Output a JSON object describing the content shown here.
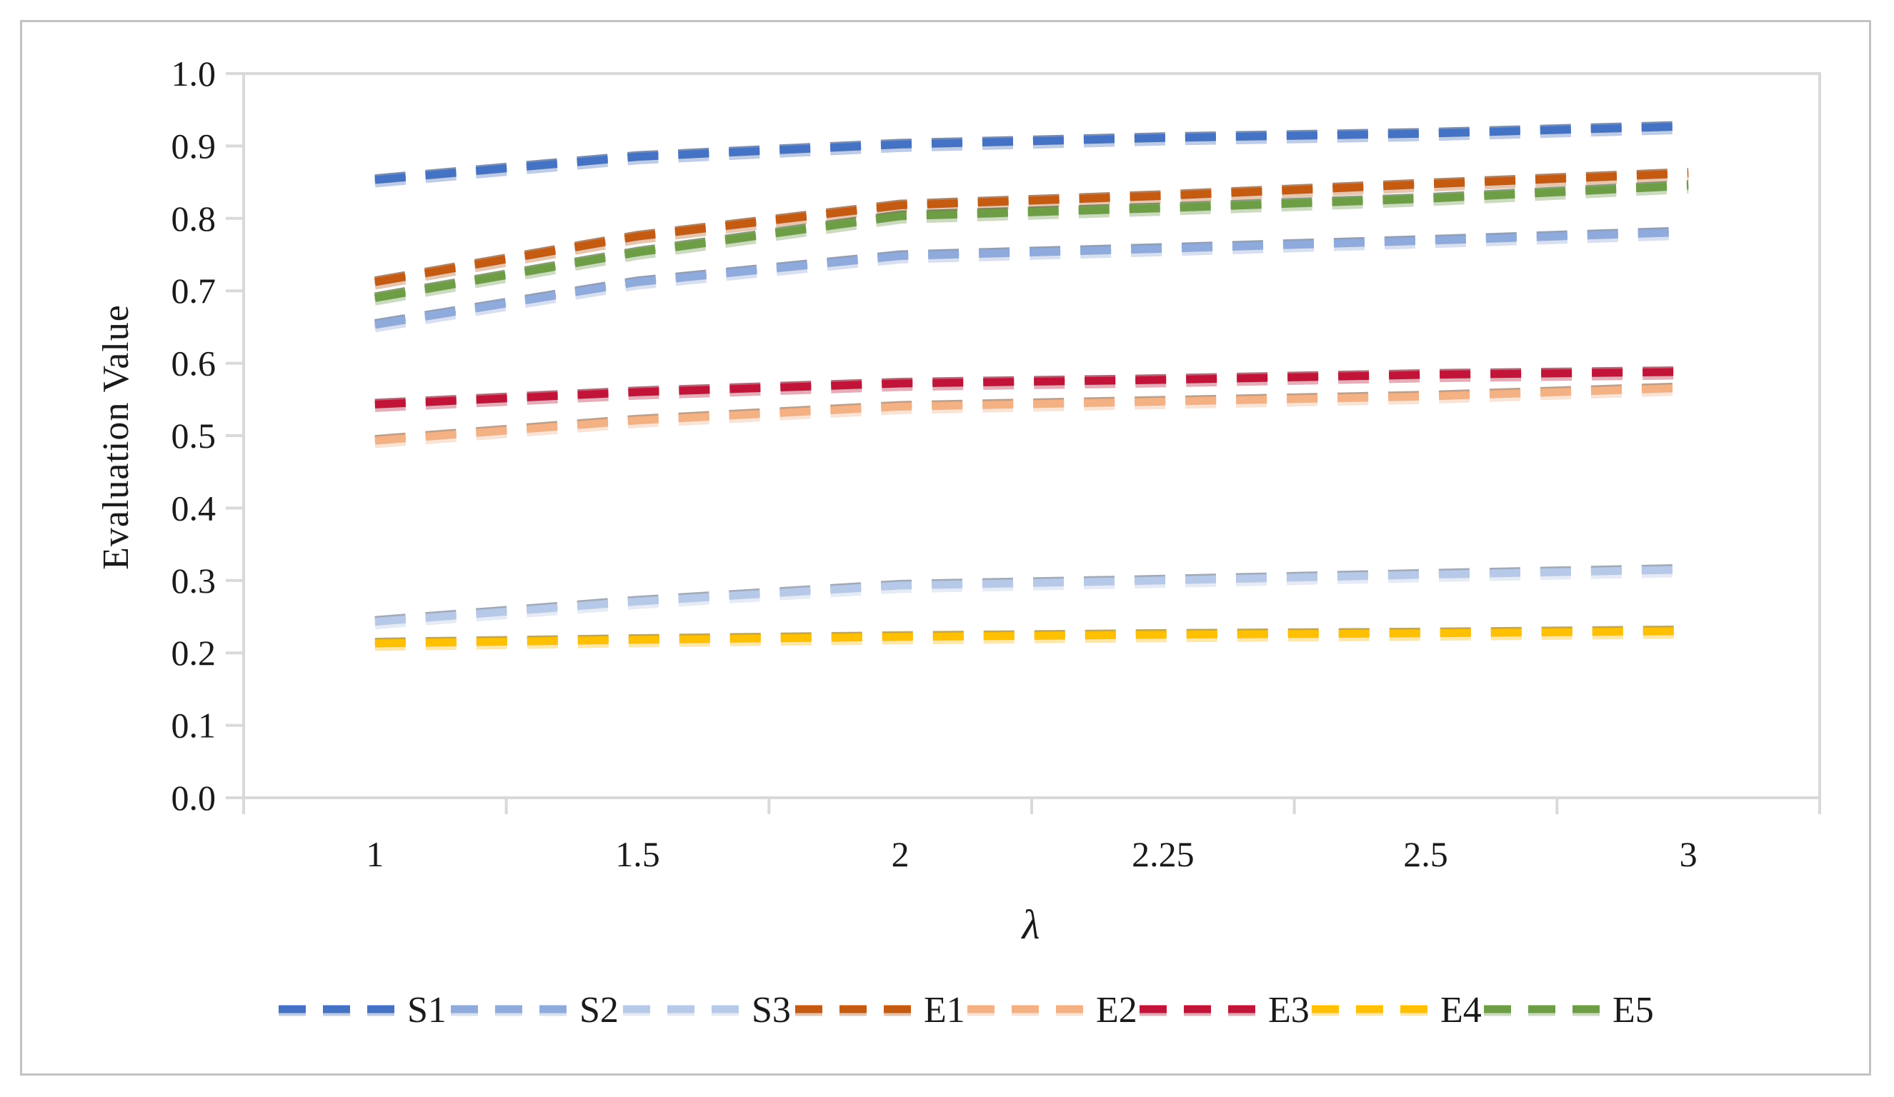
{
  "figure": {
    "background": "#ffffff",
    "border_color": "#c3c3c3"
  },
  "chart_data": {
    "type": "line",
    "title": "",
    "xlabel": "λ",
    "ylabel": "Evaluation Value",
    "line_style": "dashed",
    "grid": "off",
    "legend_position": "bottom",
    "axis_color": "#d9d9d9",
    "text_color": "#1a1a1a",
    "categories": [
      "1",
      "1.5",
      "2",
      "2.25",
      "2.5",
      "3"
    ],
    "x_values": [
      1,
      1.5,
      2,
      2.25,
      2.5,
      3
    ],
    "ylim": [
      0.0,
      1.0
    ],
    "ytick_labels": [
      "0.0",
      "0.1",
      "0.2",
      "0.3",
      "0.4",
      "0.5",
      "0.6",
      "0.7",
      "0.8",
      "0.9",
      "1.0"
    ],
    "series": [
      {
        "name": "S1",
        "color": "#4472C4",
        "values": [
          0.853,
          0.885,
          0.902,
          0.911,
          0.917,
          0.927
        ]
      },
      {
        "name": "S2",
        "color": "#8FAADC",
        "values": [
          0.653,
          0.712,
          0.748,
          0.758,
          0.769,
          0.781
        ]
      },
      {
        "name": "S3",
        "color": "#B7C9E8",
        "values": [
          0.243,
          0.271,
          0.293,
          0.3,
          0.308,
          0.315
        ]
      },
      {
        "name": "E1",
        "color": "#C55A11",
        "values": [
          0.712,
          0.775,
          0.818,
          0.831,
          0.847,
          0.862
        ]
      },
      {
        "name": "E2",
        "color": "#F4B183",
        "values": [
          0.493,
          0.521,
          0.54,
          0.547,
          0.554,
          0.566
        ]
      },
      {
        "name": "E3",
        "color": "#C21438",
        "values": [
          0.543,
          0.56,
          0.572,
          0.577,
          0.584,
          0.588
        ]
      },
      {
        "name": "E4",
        "color": "#FFC000",
        "values": [
          0.213,
          0.218,
          0.222,
          0.225,
          0.227,
          0.23
        ]
      },
      {
        "name": "E5",
        "color": "#6D9E45",
        "values": [
          0.69,
          0.753,
          0.803,
          0.814,
          0.827,
          0.845
        ]
      }
    ]
  }
}
